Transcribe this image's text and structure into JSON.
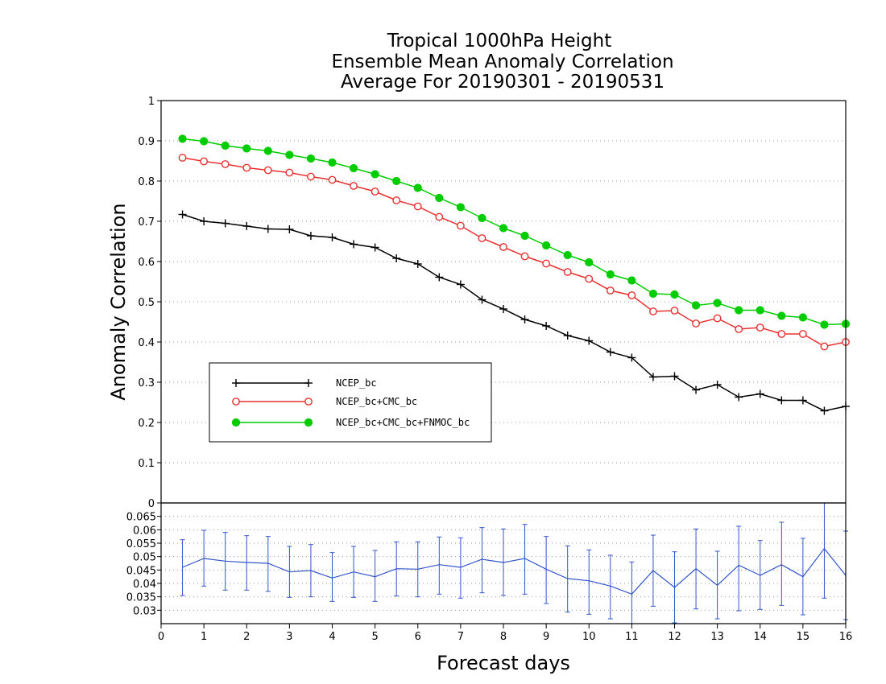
{
  "chart_data": {
    "type": "line",
    "title": [
      "Tropical 1000hPa Height",
      "Ensemble Mean Anomaly Correlation",
      "Average For 20190301 - 20190531"
    ],
    "xlabel": "Forecast days",
    "ylabel": "Anomaly Correlation",
    "xlim": [
      0,
      16
    ],
    "xticks": [
      "0",
      "1",
      "2",
      "3",
      "4",
      "5",
      "6",
      "7",
      "8",
      "9",
      "10",
      "11",
      "12",
      "13",
      "14",
      "15",
      "16"
    ],
    "ylim": [
      0,
      1
    ],
    "yticks": [
      "0",
      "0.1",
      "0.2",
      "0.3",
      "0.4",
      "0.5",
      "0.6",
      "0.7",
      "0.8",
      "0.9",
      "1"
    ],
    "grid": "horizontal dotted",
    "legend_position": "left-middle",
    "x": [
      0.5,
      1,
      1.5,
      2,
      2.5,
      3,
      3.5,
      4,
      4.5,
      5,
      5.5,
      6,
      6.5,
      7,
      7.5,
      8,
      8.5,
      9,
      9.5,
      10,
      10.5,
      11,
      11.5,
      12,
      12.5,
      13,
      13.5,
      14,
      14.5,
      15,
      15.5,
      16
    ],
    "series": [
      {
        "name": "NCEP_bc",
        "color": "#000000",
        "marker": "plus",
        "values": [
          0.717,
          0.7,
          0.695,
          0.688,
          0.681,
          0.68,
          0.664,
          0.66,
          0.643,
          0.635,
          0.608,
          0.594,
          0.561,
          0.543,
          0.505,
          0.482,
          0.456,
          0.44,
          0.416,
          0.403,
          0.375,
          0.361,
          0.313,
          0.315,
          0.281,
          0.294,
          0.263,
          0.271,
          0.255,
          0.255,
          0.229,
          0.24
        ]
      },
      {
        "name": "NCEP_bc+CMC_bc",
        "color": "#e83030",
        "marker": "open-circle",
        "values": [
          0.858,
          0.849,
          0.842,
          0.833,
          0.827,
          0.821,
          0.811,
          0.803,
          0.788,
          0.774,
          0.752,
          0.737,
          0.711,
          0.689,
          0.658,
          0.636,
          0.613,
          0.595,
          0.574,
          0.557,
          0.528,
          0.516,
          0.476,
          0.478,
          0.446,
          0.459,
          0.432,
          0.436,
          0.42,
          0.42,
          0.389,
          0.4
        ]
      },
      {
        "name": "NCEP_bc+CMC_bc+FNMOC_bc",
        "color": "#00cc00",
        "marker": "filled-circle",
        "values": [
          0.905,
          0.899,
          0.888,
          0.881,
          0.875,
          0.865,
          0.856,
          0.846,
          0.832,
          0.817,
          0.8,
          0.783,
          0.758,
          0.735,
          0.708,
          0.683,
          0.664,
          0.64,
          0.616,
          0.598,
          0.568,
          0.553,
          0.52,
          0.518,
          0.491,
          0.497,
          0.479,
          0.479,
          0.465,
          0.461,
          0.443,
          0.445
        ]
      }
    ],
    "difference_panel": {
      "ylim": [
        0.025,
        0.07
      ],
      "yticks": [
        "0.03",
        "0.035",
        "0.04",
        "0.045",
        "0.05",
        "0.055",
        "0.06",
        "0.065"
      ],
      "top_label": "0",
      "color": "#3355cc",
      "values": [
        0.046,
        0.0493,
        0.0483,
        0.0478,
        0.0475,
        0.0443,
        0.0448,
        0.042,
        0.0443,
        0.0425,
        0.0455,
        0.0453,
        0.047,
        0.046,
        0.049,
        0.0478,
        0.0493,
        0.0453,
        0.0418,
        0.041,
        0.039,
        0.036,
        0.0448,
        0.0385,
        0.0455,
        0.0393,
        0.0468,
        0.043,
        0.047,
        0.0425,
        0.053,
        0.043
      ],
      "upper": [
        0.0563,
        0.0598,
        0.059,
        0.0578,
        0.0575,
        0.0538,
        0.0545,
        0.0515,
        0.0538,
        0.0523,
        0.0555,
        0.0555,
        0.0573,
        0.057,
        0.0608,
        0.0603,
        0.062,
        0.0575,
        0.054,
        0.0525,
        0.0505,
        0.048,
        0.058,
        0.0518,
        0.0603,
        0.052,
        0.0613,
        0.056,
        0.0628,
        0.0568,
        0.071,
        0.0595
      ],
      "lower": [
        0.0355,
        0.039,
        0.0375,
        0.0375,
        0.037,
        0.0348,
        0.035,
        0.0333,
        0.0348,
        0.0333,
        0.0353,
        0.035,
        0.036,
        0.0345,
        0.0365,
        0.0355,
        0.036,
        0.0325,
        0.0293,
        0.0285,
        0.0268,
        0.0245,
        0.0315,
        0.0253,
        0.0305,
        0.0268,
        0.0298,
        0.0303,
        0.0318,
        0.0283,
        0.0345,
        0.0265
      ]
    }
  }
}
